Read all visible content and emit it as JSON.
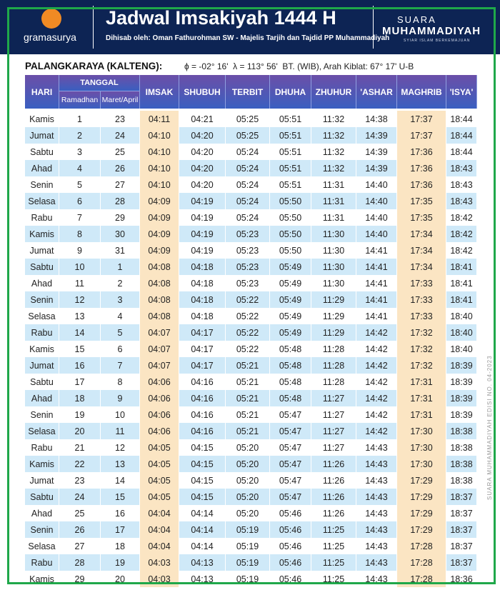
{
  "header": {
    "brand": "gramasurya",
    "title": "Jadwal Imsakiyah 1444 H",
    "subtitle": "Dihisab oleh: Oman Fathurohman SW - Majelis Tarjih dan Tajdid PP Muhammadiyah",
    "publisher_top": "SUARA",
    "publisher": "MUHAMMADIYAH",
    "tagline": "SYIAR ISLAM BERKEMAJUAN"
  },
  "location": {
    "name": "PALANGKARAYA (KALTENG):",
    "coords": "ϕ = -02° 16'  λ = 113° 56'  BT. (WIB), Arah Kiblat: 67° 17' U-B"
  },
  "side_note": "SUARA MUHAMMADIYAH EDISI NO. 04-2023",
  "table": {
    "group_header": "TANGGAL",
    "columns": [
      "HARI",
      "Ramadhan",
      "Maret/April",
      "IMSAK",
      "SHUBUH",
      "TERBIT",
      "DHUHA",
      "ZHUHUR",
      "'ASHAR",
      "MAGHRIB",
      "'ISYA'"
    ],
    "rows": [
      [
        "Kamis",
        "1",
        "23",
        "04:11",
        "04:21",
        "05:25",
        "05:51",
        "11:32",
        "14:38",
        "17:37",
        "18:44"
      ],
      [
        "Jumat",
        "2",
        "24",
        "04:10",
        "04:20",
        "05:25",
        "05:51",
        "11:32",
        "14:39",
        "17:37",
        "18:44"
      ],
      [
        "Sabtu",
        "3",
        "25",
        "04:10",
        "04:20",
        "05:24",
        "05:51",
        "11:32",
        "14:39",
        "17:36",
        "18:44"
      ],
      [
        "Ahad",
        "4",
        "26",
        "04:10",
        "04:20",
        "05:24",
        "05:51",
        "11:32",
        "14:39",
        "17:36",
        "18:43"
      ],
      [
        "Senin",
        "5",
        "27",
        "04:10",
        "04:20",
        "05:24",
        "05:51",
        "11:31",
        "14:40",
        "17:36",
        "18:43"
      ],
      [
        "Selasa",
        "6",
        "28",
        "04:09",
        "04:19",
        "05:24",
        "05:50",
        "11:31",
        "14:40",
        "17:35",
        "18:43"
      ],
      [
        "Rabu",
        "7",
        "29",
        "04:09",
        "04:19",
        "05:24",
        "05:50",
        "11:31",
        "14:40",
        "17:35",
        "18:42"
      ],
      [
        "Kamis",
        "8",
        "30",
        "04:09",
        "04:19",
        "05:23",
        "05:50",
        "11:30",
        "14:40",
        "17:34",
        "18:42"
      ],
      [
        "Jumat",
        "9",
        "31",
        "04:09",
        "04:19",
        "05:23",
        "05:50",
        "11:30",
        "14:41",
        "17:34",
        "18:42"
      ],
      [
        "Sabtu",
        "10",
        "1",
        "04:08",
        "04:18",
        "05:23",
        "05:49",
        "11:30",
        "14:41",
        "17:34",
        "18:41"
      ],
      [
        "Ahad",
        "11",
        "2",
        "04:08",
        "04:18",
        "05:23",
        "05:49",
        "11:30",
        "14:41",
        "17:33",
        "18:41"
      ],
      [
        "Senin",
        "12",
        "3",
        "04:08",
        "04:18",
        "05:22",
        "05:49",
        "11:29",
        "14:41",
        "17:33",
        "18:41"
      ],
      [
        "Selasa",
        "13",
        "4",
        "04:08",
        "04:18",
        "05:22",
        "05:49",
        "11:29",
        "14:41",
        "17:33",
        "18:40"
      ],
      [
        "Rabu",
        "14",
        "5",
        "04:07",
        "04:17",
        "05:22",
        "05:49",
        "11:29",
        "14:42",
        "17:32",
        "18:40"
      ],
      [
        "Kamis",
        "15",
        "6",
        "04:07",
        "04:17",
        "05:22",
        "05:48",
        "11:28",
        "14:42",
        "17:32",
        "18:40"
      ],
      [
        "Jumat",
        "16",
        "7",
        "04:07",
        "04:17",
        "05:21",
        "05:48",
        "11:28",
        "14:42",
        "17:32",
        "18:39"
      ],
      [
        "Sabtu",
        "17",
        "8",
        "04:06",
        "04:16",
        "05:21",
        "05:48",
        "11:28",
        "14:42",
        "17:31",
        "18:39"
      ],
      [
        "Ahad",
        "18",
        "9",
        "04:06",
        "04:16",
        "05:21",
        "05:48",
        "11:27",
        "14:42",
        "17:31",
        "18:39"
      ],
      [
        "Senin",
        "19",
        "10",
        "04:06",
        "04:16",
        "05:21",
        "05:47",
        "11:27",
        "14:42",
        "17:31",
        "18:39"
      ],
      [
        "Selasa",
        "20",
        "11",
        "04:06",
        "04:16",
        "05:21",
        "05:47",
        "11:27",
        "14:42",
        "17:30",
        "18:38"
      ],
      [
        "Rabu",
        "21",
        "12",
        "04:05",
        "04:15",
        "05:20",
        "05:47",
        "11:27",
        "14:43",
        "17:30",
        "18:38"
      ],
      [
        "Kamis",
        "22",
        "13",
        "04:05",
        "04:15",
        "05:20",
        "05:47",
        "11:26",
        "14:43",
        "17:30",
        "18:38"
      ],
      [
        "Jumat",
        "23",
        "14",
        "04:05",
        "04:15",
        "05:20",
        "05:47",
        "11:26",
        "14:43",
        "17:29",
        "18:38"
      ],
      [
        "Sabtu",
        "24",
        "15",
        "04:05",
        "04:15",
        "05:20",
        "05:47",
        "11:26",
        "14:43",
        "17:29",
        "18:37"
      ],
      [
        "Ahad",
        "25",
        "16",
        "04:04",
        "04:14",
        "05:20",
        "05:46",
        "11:26",
        "14:43",
        "17:29",
        "18:37"
      ],
      [
        "Senin",
        "26",
        "17",
        "04:04",
        "04:14",
        "05:19",
        "05:46",
        "11:25",
        "14:43",
        "17:29",
        "18:37"
      ],
      [
        "Selasa",
        "27",
        "18",
        "04:04",
        "04:14",
        "05:19",
        "05:46",
        "11:25",
        "14:43",
        "17:28",
        "18:37"
      ],
      [
        "Rabu",
        "28",
        "19",
        "04:03",
        "04:13",
        "05:19",
        "05:46",
        "11:25",
        "14:43",
        "17:28",
        "18:37"
      ],
      [
        "Kamis",
        "29",
        "20",
        "04:03",
        "04:13",
        "05:19",
        "05:46",
        "11:25",
        "14:43",
        "17:28",
        "18:36"
      ]
    ]
  }
}
